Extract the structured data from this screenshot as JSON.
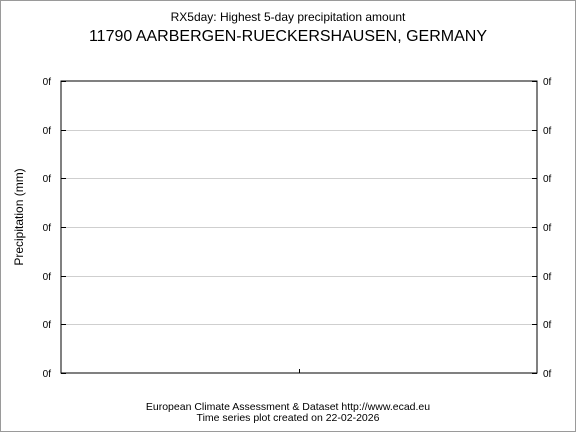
{
  "chart_data": {
    "type": "line",
    "title": "RX5day: Highest 5-day precipitation amount",
    "subtitle": "11790 AARBERGEN-RUECKERSHAUSEN, GERMANY",
    "xlabel": "",
    "ylabel": "Precipitation (mm)",
    "y_tick_labels": [
      "0f",
      "0f",
      "0f",
      "0f",
      "0f",
      "0f",
      "0f"
    ],
    "x_tick_labels": [],
    "series": [],
    "grid": true,
    "colors": {
      "frame": "#000000",
      "grid": "#cfcfcf",
      "background": "#ffffff"
    }
  },
  "footer": {
    "line1": "European Climate Assessment & Dataset  http://www.ecad.eu",
    "line2": "Time series plot created on 22-02-2026"
  }
}
